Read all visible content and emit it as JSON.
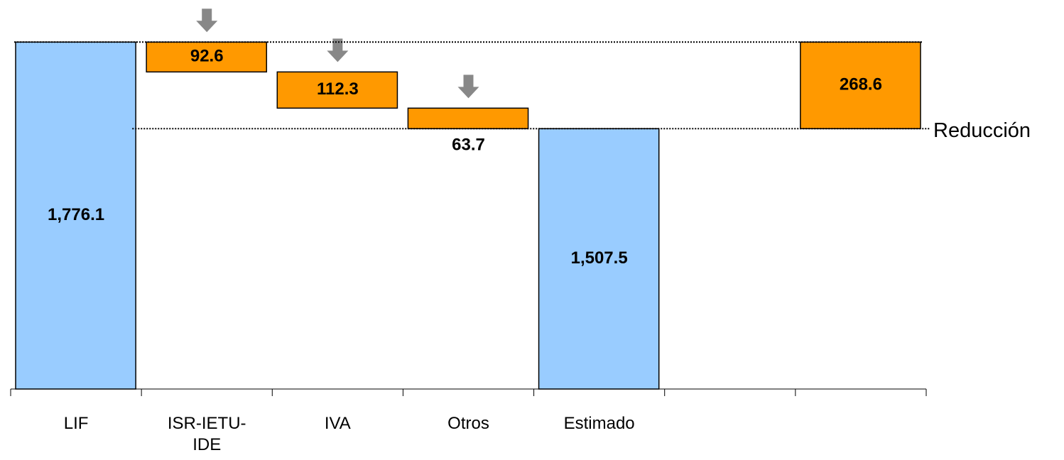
{
  "chart_data": {
    "type": "waterfall",
    "categories": [
      "LIF",
      "ISR-IETU-IDE",
      "IVA",
      "Otros",
      "Estimado",
      null,
      null
    ],
    "values": [
      1776.1,
      92.6,
      112.3,
      63.7,
      1507.5,
      null,
      268.6
    ],
    "value_labels": [
      "1,776.1",
      "92.6",
      "112.3",
      "63.7",
      "1,507.5",
      null,
      "268.6"
    ],
    "measures": [
      "absolute",
      "decrease",
      "decrease",
      "decrease",
      "absolute",
      null,
      "increase"
    ],
    "colors": [
      "#99ccff",
      "#ff9900",
      "#ff9900",
      "#ff9900",
      "#99ccff",
      null,
      "#ff9900"
    ],
    "annotation": "Reducción",
    "ylim": [
      700,
      1900
    ]
  }
}
